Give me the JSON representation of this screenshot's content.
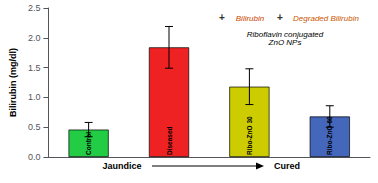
{
  "chart_data": {
    "type": "bar",
    "categories": [
      "Control",
      "Diseased",
      "Ribo-ZnO 30",
      "Ribo-ZnO 60"
    ],
    "values": [
      0.46,
      1.84,
      1.18,
      0.68
    ],
    "errors": [
      0.12,
      0.35,
      0.3,
      0.18
    ],
    "colors": [
      "#22cc44",
      "#ee2222",
      "#cccc00",
      "#4466bb"
    ],
    "ylabel": "Bilirubin (mg/dl)",
    "ylim": [
      0.0,
      2.5
    ],
    "yticks": [
      {
        "value": 0.0,
        "label": "0.0"
      },
      0.5,
      {
        "value": 1.0,
        "label": "1.0"
      },
      1.5,
      {
        "value": 2.0,
        "label": "2.0"
      },
      2.5
    ],
    "grid": false,
    "tick_labels": "y",
    "annotations": [
      "Jaundice",
      "Cured",
      "+",
      "Bilirubin",
      "+",
      "Degraded Bilirubin",
      "Riboflavin conjugated\nZnO NPs"
    ]
  }
}
